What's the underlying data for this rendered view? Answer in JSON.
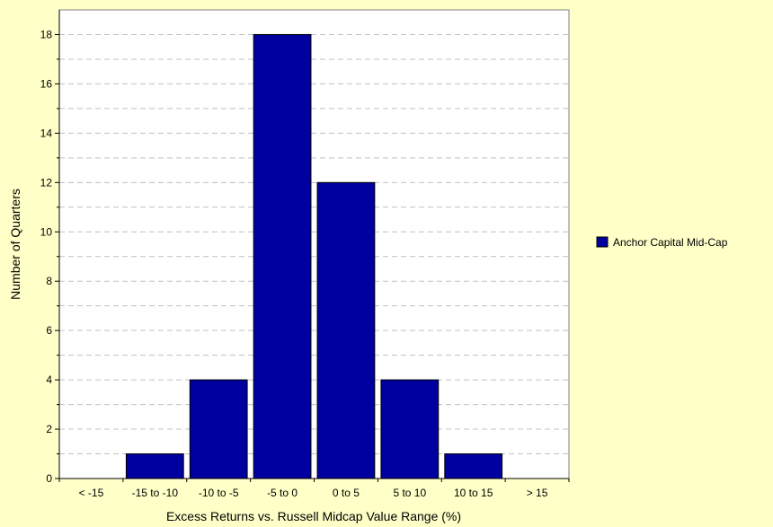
{
  "chart_data": {
    "type": "bar",
    "title": "",
    "xlabel": "Excess Returns vs. Russell Midcap Value Range (%)",
    "ylabel": "Number of Quarters",
    "categories": [
      "< -15",
      "-15 to -10",
      "-10 to -5",
      "-5 to 0",
      "0 to 5",
      "5 to 10",
      "10 to 15",
      "> 15"
    ],
    "series": [
      {
        "name": "Anchor Capital Mid-Cap",
        "values": [
          0,
          1,
          4,
          18,
          12,
          4,
          1,
          0
        ],
        "color": "#0000a0"
      }
    ],
    "ylim": [
      0,
      19
    ],
    "yticks": [
      0,
      2,
      4,
      6,
      8,
      10,
      12,
      14,
      16,
      18
    ],
    "grid": "horizontal dashed",
    "legend_position": "right",
    "background_color": "#ffffc8",
    "plot_background_color": "#ffffff"
  }
}
